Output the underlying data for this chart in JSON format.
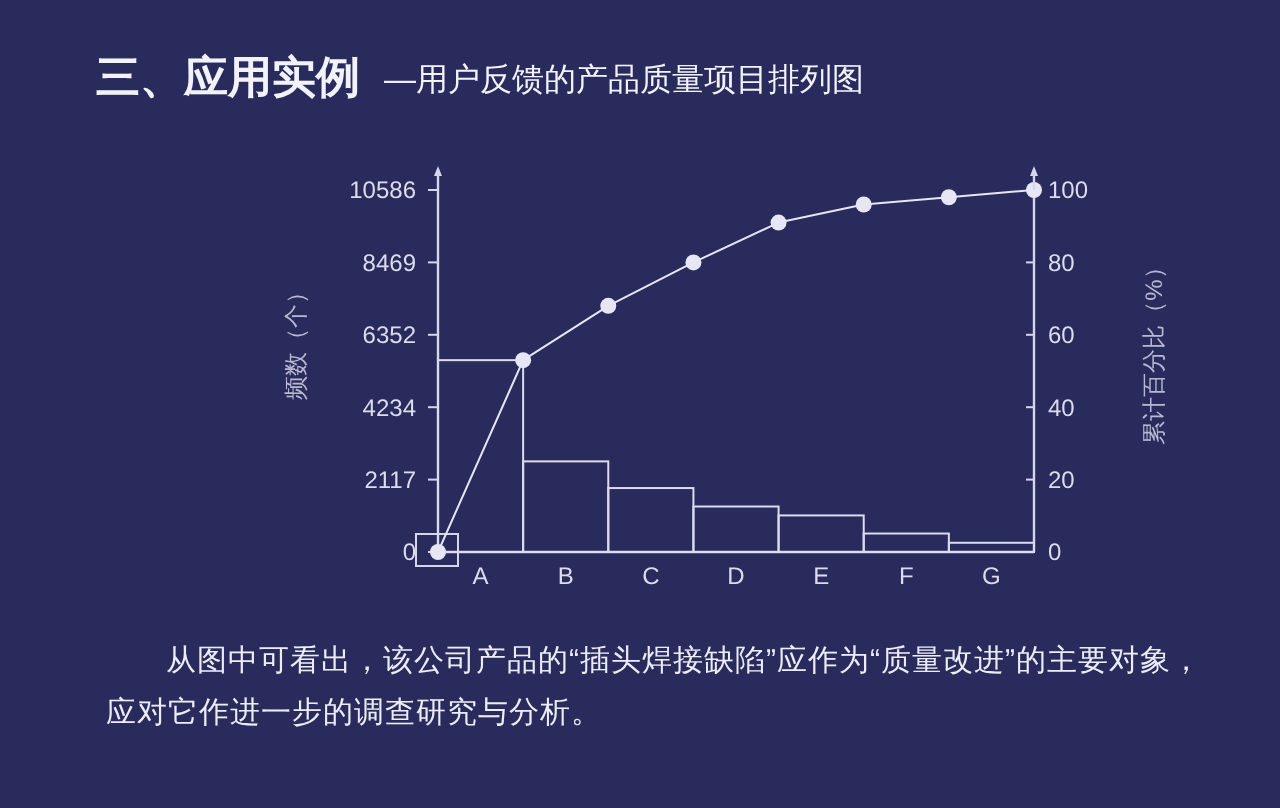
{
  "chart_data": {
    "type": "bar",
    "title": "三、应用实例",
    "subtitle": "—用户反馈的产品质量项目排列图",
    "ylabel": "频数（个）",
    "y2label": "累计百分比（%）",
    "categories": [
      null,
      "A",
      null,
      "B",
      null,
      "C",
      null,
      "D",
      null,
      "E",
      null,
      "F",
      null,
      "G",
      null
    ],
    "ylim": [
      0,
      10586
    ],
    "yticks": [
      0,
      2117,
      4234,
      6352,
      8469,
      10586
    ],
    "y2lim": [
      0,
      100
    ],
    "y2ticks": [
      0,
      20,
      40,
      60,
      80,
      100
    ],
    "series": [
      {
        "color": "#dcdcee",
        "values": [
          null,
          5610,
          null,
          2650,
          null,
          1870,
          null,
          1330,
          null,
          1070,
          null,
          540,
          null,
          270,
          null
        ]
      },
      {
        "type": "line",
        "axis": "y2",
        "color": "#e6e6f4",
        "values": [
          0,
          null,
          53,
          null,
          68,
          null,
          80,
          null,
          91,
          null,
          96,
          null,
          98,
          null,
          100
        ]
      }
    ],
    "marker": "circle",
    "annotations": [
      "从图中可看出，该公司产品的“插头焊接缺陷”应作为“质量改进”的主要对象，应对它作进一步的调查研究与分析。"
    ]
  }
}
